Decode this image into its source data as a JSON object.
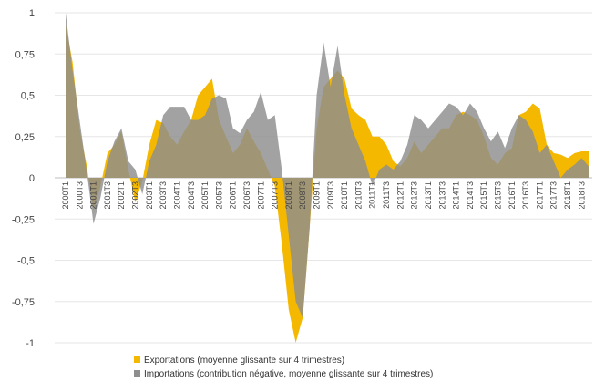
{
  "chart_data": {
    "type": "area",
    "title": "",
    "xlabel": "",
    "ylabel": "",
    "ylim": [
      -1,
      1
    ],
    "yticks": [
      -1,
      -0.75,
      -0.5,
      -0.25,
      0,
      0.25,
      0.5,
      0.75,
      1
    ],
    "ytick_labels": [
      "-1",
      "-0,75",
      "-0,5",
      "-0,25",
      "0",
      "0,25",
      "0,5",
      "0,75",
      "1"
    ],
    "grid": true,
    "legend_position": "bottom",
    "x": [
      "2000T1",
      "2000T2",
      "2000T3",
      "2000T4",
      "2001T1",
      "2001T2",
      "2001T3",
      "2001T4",
      "2002T1",
      "2002T2",
      "2002T3",
      "2002T4",
      "2003T1",
      "2003T2",
      "2003T3",
      "2003T4",
      "2004T1",
      "2004T2",
      "2004T3",
      "2004T4",
      "2005T1",
      "2005T2",
      "2005T3",
      "2005T4",
      "2006T1",
      "2006T2",
      "2006T3",
      "2006T4",
      "2007T1",
      "2007T2",
      "2007T3",
      "2007T4",
      "2008T1",
      "2008T2",
      "2008T3",
      "2008T4",
      "2009T1",
      "2009T2",
      "2009T3",
      "2009T4",
      "2010T1",
      "2010T2",
      "2010T3",
      "2010T4",
      "2011T1",
      "2011T2",
      "2011T3",
      "2011T4",
      "2012T1",
      "2012T2",
      "2012T3",
      "2012T4",
      "2013T1",
      "2013T2",
      "2013T3",
      "2013T4",
      "2014T1",
      "2014T2",
      "2014T3",
      "2014T4",
      "2015T1",
      "2015T2",
      "2015T3",
      "2015T4",
      "2016T1",
      "2016T2",
      "2016T3",
      "2016T4",
      "2017T1",
      "2017T2",
      "2017T3",
      "2017T4",
      "2018T1",
      "2018T2",
      "2018T3",
      "2018T4"
    ],
    "x_tick_labels": [
      "2000T1",
      "2000T3",
      "2001T1",
      "2001T3",
      "2002T1",
      "2002T3",
      "2003T1",
      "2003T3",
      "2004T1",
      "2004T3",
      "2005T1",
      "2005T3",
      "2006T1",
      "2006T3",
      "2007T1",
      "2007T3",
      "2008T1",
      "2008T3",
      "2009T1",
      "2009T3",
      "2010T1",
      "2010T3",
      "2011T1",
      "2011T3",
      "2012T1",
      "2012T3",
      "2013T1",
      "2013T3",
      "2014T1",
      "2014T3",
      "2015T1",
      "2015T3",
      "2016T1",
      "2016T3",
      "2017T1",
      "2017T3",
      "2018T1",
      "2018T3"
    ],
    "series": [
      {
        "name": "Exportations (moyenne glissante sur 4 trimestres)",
        "color": "#f5b800",
        "values": [
          0.93,
          0.7,
          0.3,
          0.08,
          -0.2,
          -0.05,
          0.15,
          0.2,
          0.28,
          0.05,
          -0.15,
          -0.02,
          0.2,
          0.35,
          0.33,
          0.25,
          0.2,
          0.28,
          0.35,
          0.5,
          0.55,
          0.6,
          0.35,
          0.25,
          0.15,
          0.2,
          0.3,
          0.22,
          0.15,
          0.05,
          -0.05,
          -0.4,
          -0.8,
          -1.0,
          -0.85,
          -0.3,
          0.3,
          0.55,
          0.6,
          0.65,
          0.6,
          0.42,
          0.38,
          0.35,
          0.25,
          0.25,
          0.2,
          0.1,
          0.07,
          0.12,
          0.22,
          0.15,
          0.2,
          0.25,
          0.3,
          0.3,
          0.38,
          0.4,
          0.38,
          0.35,
          0.25,
          0.12,
          0.08,
          0.15,
          0.18,
          0.38,
          0.4,
          0.45,
          0.42,
          0.2,
          0.15,
          0.14,
          0.12,
          0.15,
          0.16,
          0.16
        ]
      },
      {
        "name": "Importations (contribution négative, moyenne glissante sur 4 trimestres)",
        "color": "#8e8e8e",
        "values": [
          1.0,
          0.65,
          0.35,
          0.05,
          -0.28,
          -0.12,
          0.1,
          0.22,
          0.3,
          0.1,
          0.05,
          -0.1,
          0.1,
          0.2,
          0.38,
          0.43,
          0.43,
          0.43,
          0.35,
          0.35,
          0.38,
          0.48,
          0.5,
          0.48,
          0.3,
          0.27,
          0.35,
          0.4,
          0.52,
          0.35,
          0.38,
          0.05,
          -0.35,
          -0.75,
          -0.85,
          -0.3,
          0.5,
          0.82,
          0.55,
          0.8,
          0.5,
          0.3,
          0.2,
          0.1,
          -0.05,
          0.05,
          0.08,
          0.05,
          0.1,
          0.2,
          0.38,
          0.35,
          0.3,
          0.35,
          0.4,
          0.45,
          0.43,
          0.38,
          0.45,
          0.4,
          0.3,
          0.22,
          0.28,
          0.18,
          0.3,
          0.38,
          0.35,
          0.28,
          0.15,
          0.2,
          0.1,
          0.0,
          0.05,
          0.08,
          0.12,
          0.07
        ]
      }
    ]
  }
}
